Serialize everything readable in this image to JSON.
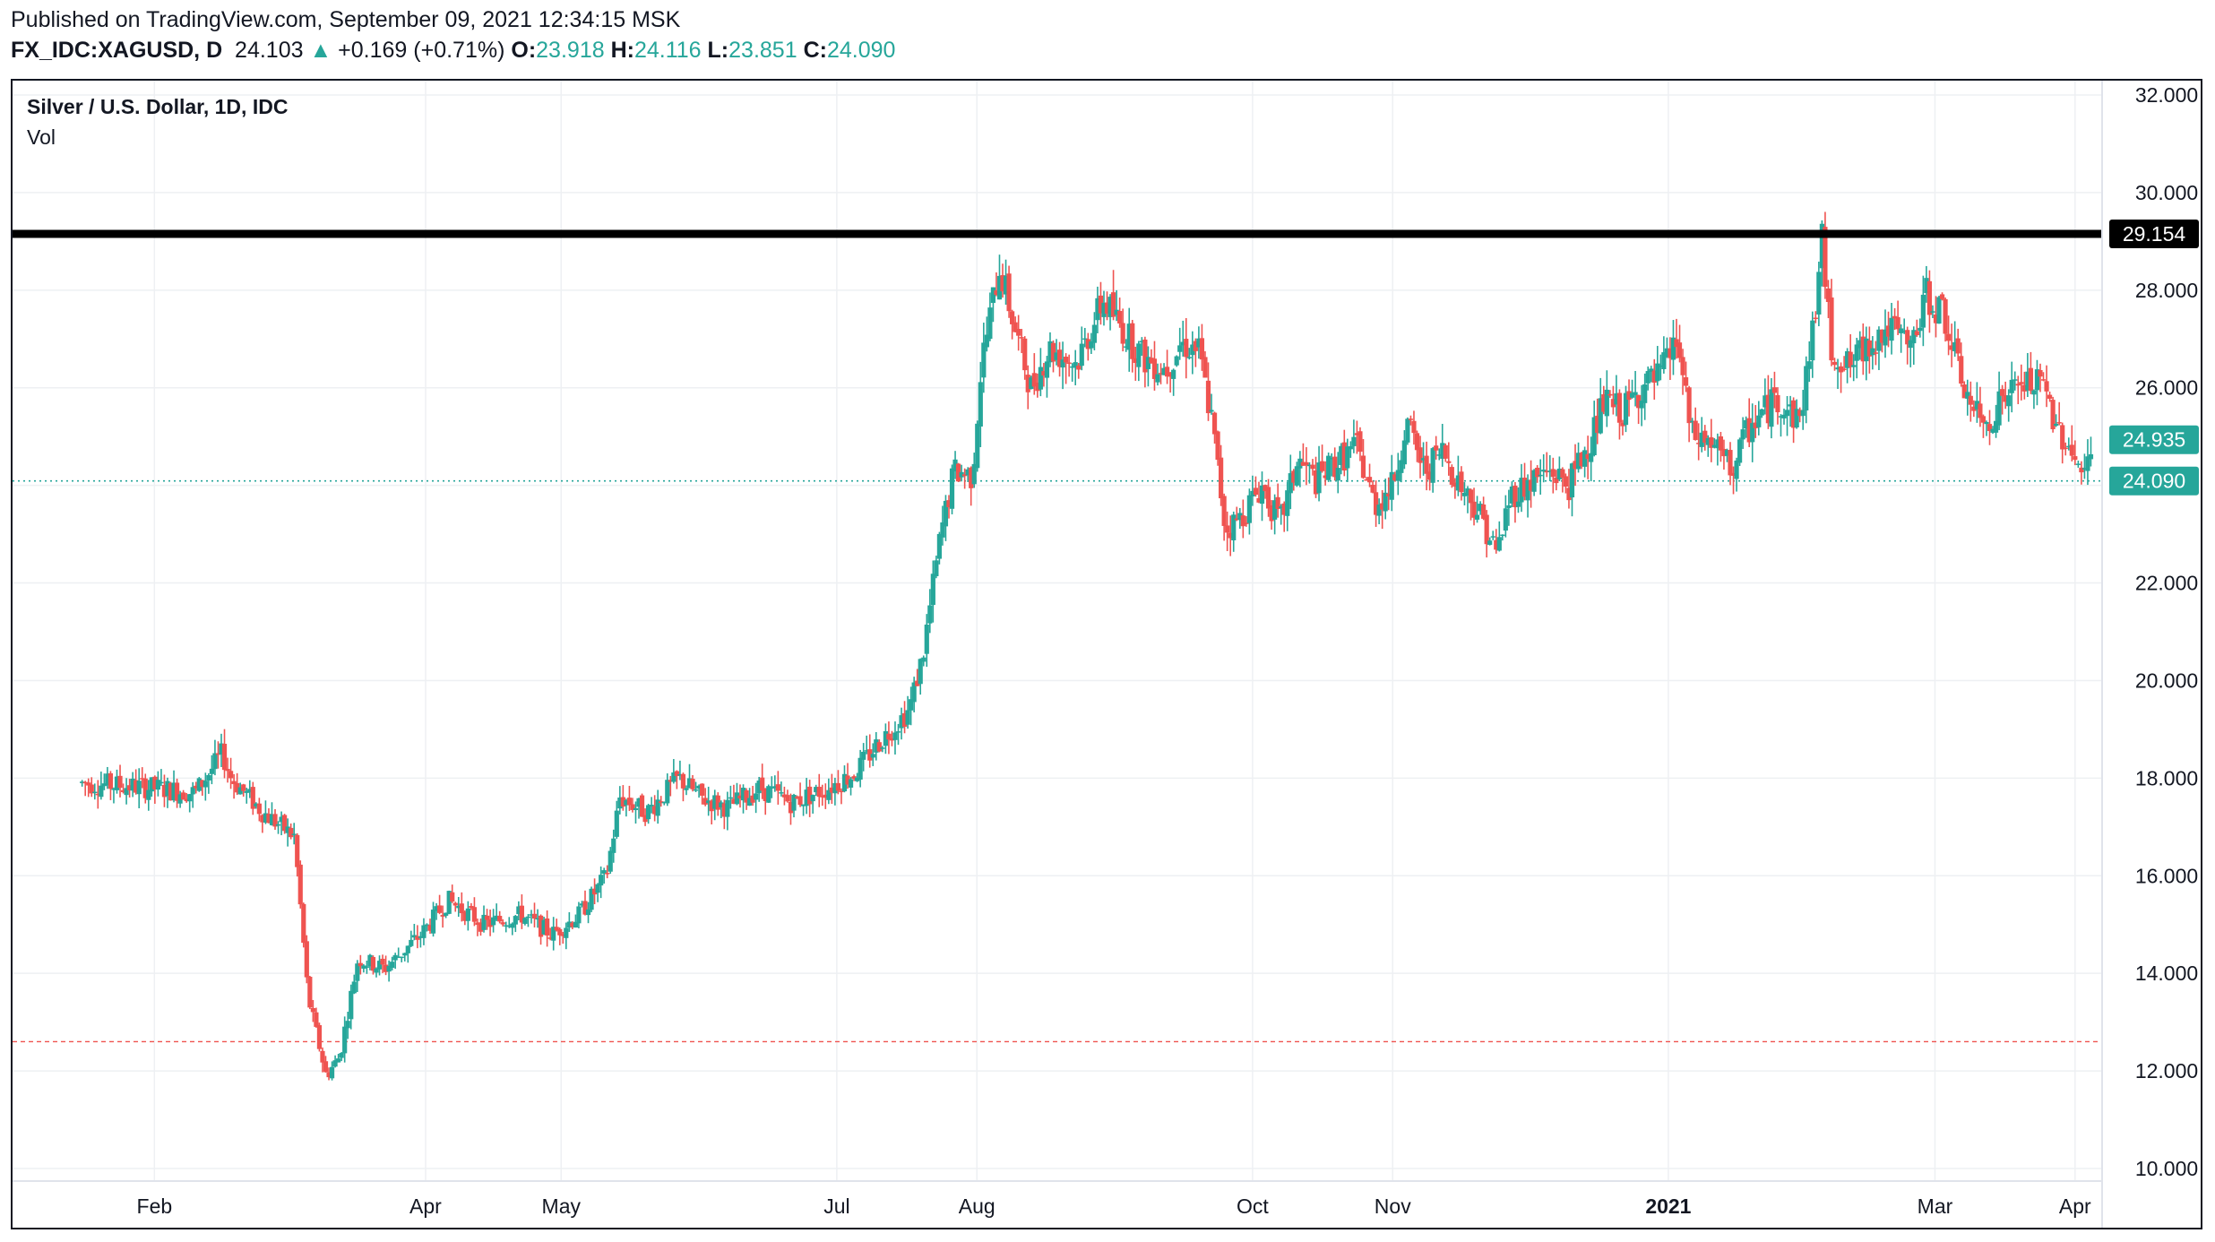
{
  "header": {
    "published": "Published on TradingView.com, September 09, 2021 12:34:15 MSK",
    "symbol": "FX_IDC:XAGUSD, D",
    "last": "24.103",
    "arrow": "▲",
    "change": "+0.169 (+0.71%)",
    "o_label": "O:",
    "o_value": "23.918",
    "h_label": "H:",
    "h_value": "24.116",
    "l_label": "L:",
    "l_value": "23.851",
    "c_label": "C:",
    "c_value": "24.090"
  },
  "legend": {
    "title": "Silver / U.S. Dollar, 1D, IDC",
    "vol": "Vol"
  },
  "colors": {
    "up": "#26a69a",
    "down": "#ef5350",
    "grid": "#eef0f3",
    "resistance": "#000000"
  },
  "chart_data": {
    "type": "candlestick",
    "y_axis": {
      "min": 10,
      "max": 32,
      "ticks": [
        "10.000",
        "12.000",
        "14.000",
        "16.000",
        "18.000",
        "20.000",
        "22.000",
        "24.000",
        "26.000",
        "28.000",
        "30.000",
        "32.000"
      ],
      "tick_values": [
        10,
        12,
        14,
        16,
        18,
        20,
        22,
        24,
        26,
        28,
        30,
        32
      ]
    },
    "x_axis": {
      "labels": [
        {
          "text": "Feb",
          "day": 31,
          "bold": false
        },
        {
          "text": "Apr",
          "day": 91,
          "bold": false
        },
        {
          "text": "May",
          "day": 121,
          "bold": false
        },
        {
          "text": "Jul",
          "day": 182,
          "bold": false
        },
        {
          "text": "Aug",
          "day": 213,
          "bold": false
        },
        {
          "text": "Oct",
          "day": 274,
          "bold": false
        },
        {
          "text": "Nov",
          "day": 305,
          "bold": false
        },
        {
          "text": "2021",
          "day": 366,
          "bold": true
        },
        {
          "text": "Mar",
          "day": 425,
          "bold": false
        },
        {
          "text": "Apr",
          "day": 456,
          "bold": false
        }
      ]
    },
    "horizontal_line": {
      "value": 29.154,
      "label": "29.154"
    },
    "price_labels": [
      {
        "value": 24.935,
        "label": "24.935"
      },
      {
        "value": 24.09,
        "label": "24.090"
      }
    ],
    "current_price_line": 24.09,
    "low_dashed_line": 12.6,
    "key_points": [
      [
        15,
        17.9
      ],
      [
        31,
        17.8
      ],
      [
        40,
        17.7
      ],
      [
        46,
        18.5
      ],
      [
        48,
        18.0
      ],
      [
        55,
        17.3
      ],
      [
        62,
        16.8
      ],
      [
        65,
        13.5
      ],
      [
        69,
        11.9
      ],
      [
        72,
        12.3
      ],
      [
        76,
        14.3
      ],
      [
        82,
        14.1
      ],
      [
        90,
        14.8
      ],
      [
        96,
        15.5
      ],
      [
        104,
        15.0
      ],
      [
        112,
        15.2
      ],
      [
        119,
        14.8
      ],
      [
        125,
        15.2
      ],
      [
        131,
        16.0
      ],
      [
        134,
        17.6
      ],
      [
        140,
        17.3
      ],
      [
        147,
        18.0
      ],
      [
        152,
        17.6
      ],
      [
        158,
        17.4
      ],
      [
        165,
        17.8
      ],
      [
        172,
        17.5
      ],
      [
        180,
        17.8
      ],
      [
        186,
        18.1
      ],
      [
        191,
        18.7
      ],
      [
        198,
        19.4
      ],
      [
        201,
        20.5
      ],
      [
        205,
        23.0
      ],
      [
        208,
        24.3
      ],
      [
        212,
        24.2
      ],
      [
        214,
        26.5
      ],
      [
        218,
        28.5
      ],
      [
        222,
        27.0
      ],
      [
        225,
        26.0
      ],
      [
        229,
        26.8
      ],
      [
        235,
        26.5
      ],
      [
        241,
        27.8
      ],
      [
        246,
        27.1
      ],
      [
        250,
        26.6
      ],
      [
        255,
        26.4
      ],
      [
        258,
        26.9
      ],
      [
        262,
        26.8
      ],
      [
        265,
        25.3
      ],
      [
        268,
        23.1
      ],
      [
        271,
        23.3
      ],
      [
        276,
        24.0
      ],
      [
        280,
        23.2
      ],
      [
        284,
        24.5
      ],
      [
        288,
        24.1
      ],
      [
        293,
        24.5
      ],
      [
        297,
        24.8
      ],
      [
        301,
        23.6
      ],
      [
        305,
        24.0
      ],
      [
        308,
        25.3
      ],
      [
        312,
        24.3
      ],
      [
        316,
        24.7
      ],
      [
        320,
        24.0
      ],
      [
        324,
        23.5
      ],
      [
        328,
        22.6
      ],
      [
        331,
        23.8
      ],
      [
        336,
        24.1
      ],
      [
        340,
        24.3
      ],
      [
        344,
        24.0
      ],
      [
        349,
        25.0
      ],
      [
        352,
        25.7
      ],
      [
        356,
        25.5
      ],
      [
        360,
        26.0
      ],
      [
        364,
        26.2
      ],
      [
        368,
        27.0
      ],
      [
        371,
        25.0
      ],
      [
        375,
        24.9
      ],
      [
        380,
        24.3
      ],
      [
        384,
        25.2
      ],
      [
        390,
        25.8
      ],
      [
        395,
        25.3
      ],
      [
        398,
        27.2
      ],
      [
        400,
        29.0
      ],
      [
        402,
        26.8
      ],
      [
        406,
        26.4
      ],
      [
        411,
        27.0
      ],
      [
        415,
        27.2
      ],
      [
        420,
        26.8
      ],
      [
        423,
        27.9
      ],
      [
        427,
        27.5
      ],
      [
        430,
        26.4
      ],
      [
        433,
        25.6
      ],
      [
        436,
        25.2
      ],
      [
        440,
        25.8
      ],
      [
        445,
        26.1
      ],
      [
        449,
        26.0
      ],
      [
        452,
        25.2
      ],
      [
        455,
        24.8
      ],
      [
        458,
        24.1
      ],
      [
        460,
        24.9
      ]
    ]
  }
}
